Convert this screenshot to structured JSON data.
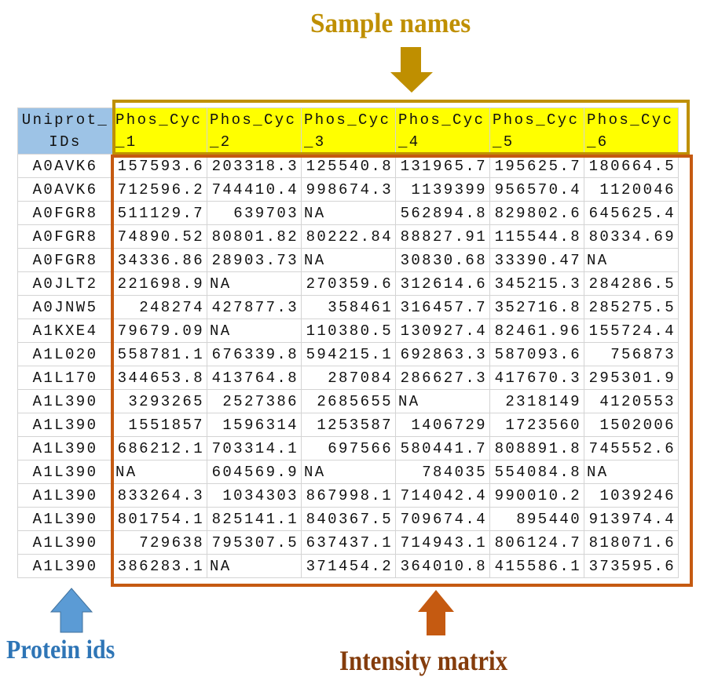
{
  "labels": {
    "sample_names": "Sample names",
    "protein_ids": "Protein ids",
    "intensity_matrix": "Intensity matrix"
  },
  "colors": {
    "sample_names": "#bf8f00",
    "protein_ids": "#2e75b6",
    "intensity_matrix": "#843c0c",
    "header_fill": "#ffff00",
    "id_header_fill": "#9dc3e6"
  },
  "table": {
    "id_header": "Uniprot_IDs",
    "headers": [
      "Phos_Cyc_1",
      "Phos_Cyc_2",
      "Phos_Cyc_3",
      "Phos_Cyc_4",
      "Phos_Cyc_5",
      "Phos_Cyc_6"
    ],
    "rows": [
      {
        "id": "A0AVK6",
        "values": [
          "157593.6",
          "203318.3",
          "125540.8",
          "131965.7",
          "195625.7",
          "180664.5"
        ]
      },
      {
        "id": "A0AVK6",
        "values": [
          "712596.2",
          "744410.4",
          "998674.3",
          "1139399",
          "956570.4",
          "1120046"
        ]
      },
      {
        "id": "A0FGR8",
        "values": [
          "511129.7",
          "639703",
          "NA",
          "562894.8",
          "829802.6",
          "645625.4"
        ]
      },
      {
        "id": "A0FGR8",
        "values": [
          "74890.52",
          "80801.82",
          "80222.84",
          "88827.91",
          "115544.8",
          "80334.69"
        ]
      },
      {
        "id": "A0FGR8",
        "values": [
          "34336.86",
          "28903.73",
          "NA",
          "30830.68",
          "33390.47",
          "NA"
        ]
      },
      {
        "id": "A0JLT2",
        "values": [
          "221698.9",
          "NA",
          "270359.6",
          "312614.6",
          "345215.3",
          "284286.5"
        ]
      },
      {
        "id": "A0JNW5",
        "values": [
          "248274",
          "427877.3",
          "358461",
          "316457.7",
          "352716.8",
          "285275.5"
        ]
      },
      {
        "id": "A1KXE4",
        "values": [
          "79679.09",
          "NA",
          "110380.5",
          "130927.4",
          "82461.96",
          "155724.4"
        ]
      },
      {
        "id": "A1L020",
        "values": [
          "558781.1",
          "676339.8",
          "594215.1",
          "692863.3",
          "587093.6",
          "756873"
        ]
      },
      {
        "id": "A1L170",
        "values": [
          "344653.8",
          "413764.8",
          "287084",
          "286627.3",
          "417670.3",
          "295301.9"
        ]
      },
      {
        "id": "A1L390",
        "values": [
          "3293265",
          "2527386",
          "2685655",
          "NA",
          "2318149",
          "4120553"
        ]
      },
      {
        "id": "A1L390",
        "values": [
          "1551857",
          "1596314",
          "1253587",
          "1406729",
          "1723560",
          "1502006"
        ]
      },
      {
        "id": "A1L390",
        "values": [
          "686212.1",
          "703314.1",
          "697566",
          "580441.7",
          "808891.8",
          "745552.6"
        ]
      },
      {
        "id": "A1L390",
        "values": [
          "NA",
          "604569.9",
          "NA",
          "784035",
          "554084.8",
          "NA"
        ]
      },
      {
        "id": "A1L390",
        "values": [
          "833264.3",
          "1034303",
          "867998.1",
          "714042.4",
          "990010.2",
          "1039246"
        ]
      },
      {
        "id": "A1L390",
        "values": [
          "801754.1",
          "825141.1",
          "840367.5",
          "709674.4",
          "895440",
          "913974.4"
        ]
      },
      {
        "id": "A1L390",
        "values": [
          "729638",
          "795307.5",
          "637437.1",
          "714943.1",
          "806124.7",
          "818071.6"
        ]
      },
      {
        "id": "A1L390",
        "values": [
          "386283.1",
          "NA",
          "371454.2",
          "364010.8",
          "415586.1",
          "373595.6"
        ]
      }
    ]
  }
}
